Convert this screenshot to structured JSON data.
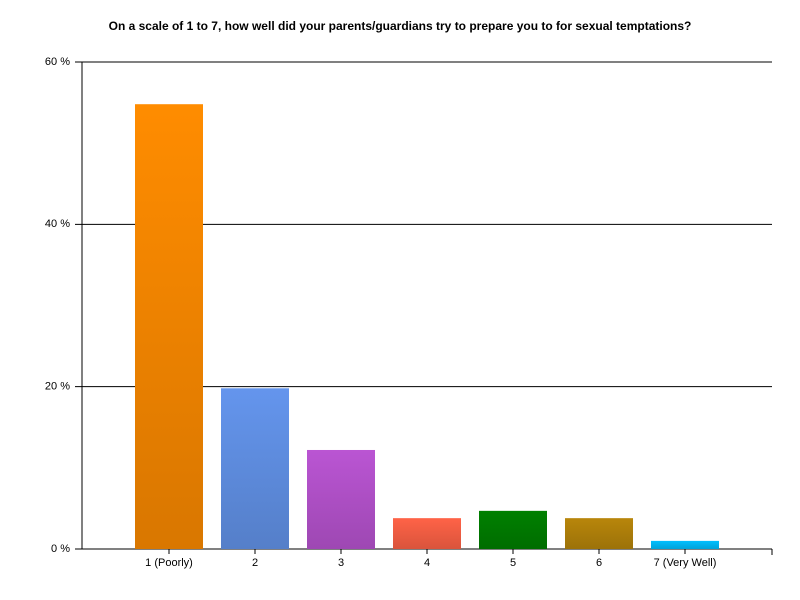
{
  "chart_data": {
    "type": "bar",
    "title": "On a scale of 1 to 7, how well did your parents/guardians try to prepare you to for sexual temptations?",
    "categories": [
      "1 (Poorly)",
      "2",
      "3",
      "4",
      "5",
      "6",
      "7 (Very Well)"
    ],
    "values": [
      54.8,
      19.8,
      12.2,
      3.8,
      4.7,
      3.8,
      1.0
    ],
    "colors": [
      "#ff8c00",
      "#6495ed",
      "#ba55d3",
      "#ff6347",
      "#008000",
      "#b8860b",
      "#00bfff"
    ],
    "ylim": [
      0,
      60
    ],
    "yticks": [
      {
        "value": 0,
        "label": "0 %"
      },
      {
        "value": 20,
        "label": "20 %"
      },
      {
        "value": 40,
        "label": "40 %"
      },
      {
        "value": 60,
        "label": "60 %"
      }
    ],
    "grid": true
  }
}
